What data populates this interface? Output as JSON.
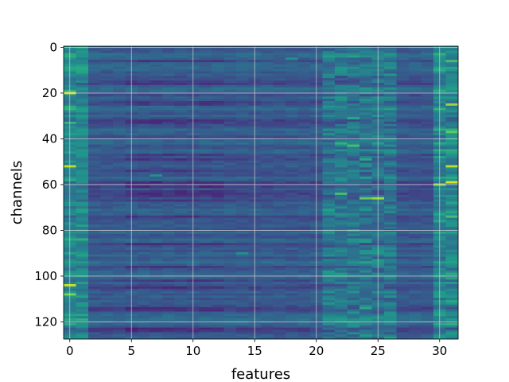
{
  "chart_data": {
    "type": "heatmap",
    "title": "",
    "xlabel": "features",
    "ylabel": "channels",
    "n_cols": 32,
    "n_rows": 128,
    "xlim": [
      -0.5,
      31.5
    ],
    "ylim": [
      127.5,
      -0.5
    ],
    "x_ticks": [
      0,
      5,
      10,
      15,
      20,
      25,
      30
    ],
    "y_ticks": [
      0,
      20,
      40,
      60,
      80,
      100,
      120
    ],
    "grid": true,
    "colormap": "viridis",
    "colormap_stops": [
      "#440154",
      "#482878",
      "#3e4989",
      "#31688e",
      "#26828e",
      "#1f9e89",
      "#35b779",
      "#6ece58",
      "#b5de2b",
      "#fde725"
    ],
    "grid_color": "#d9d9d9",
    "hot_spots": [
      {
        "x": 0,
        "y": 20,
        "value": 0.95
      },
      {
        "x": 0,
        "y": 52,
        "value": 0.9
      },
      {
        "x": 0,
        "y": 104,
        "value": 0.92
      },
      {
        "x": 0,
        "y": 108,
        "value": 0.8
      },
      {
        "x": 0,
        "y": 33,
        "value": 0.65
      },
      {
        "x": 0,
        "y": 58,
        "value": 0.6
      },
      {
        "x": 31,
        "y": 25,
        "value": 0.85
      },
      {
        "x": 31,
        "y": 52,
        "value": 0.9
      },
      {
        "x": 31,
        "y": 59,
        "value": 0.95
      },
      {
        "x": 30,
        "y": 60,
        "value": 0.85
      },
      {
        "x": 31,
        "y": 37,
        "value": 0.75
      },
      {
        "x": 31,
        "y": 74,
        "value": 0.7
      },
      {
        "x": 31,
        "y": 6,
        "value": 0.7
      },
      {
        "x": 25,
        "y": 66,
        "value": 0.85
      },
      {
        "x": 24,
        "y": 66,
        "value": 0.75
      },
      {
        "x": 22,
        "y": 64,
        "value": 0.7
      },
      {
        "x": 23,
        "y": 43,
        "value": 0.7
      },
      {
        "x": 22,
        "y": 42,
        "value": 0.65
      },
      {
        "x": 24,
        "y": 49,
        "value": 0.6
      },
      {
        "x": 23,
        "y": 31,
        "value": 0.6
      },
      {
        "x": 23,
        "y": 80,
        "value": 0.55
      },
      {
        "x": 24,
        "y": 114,
        "value": 0.6
      },
      {
        "x": 22,
        "y": 119,
        "value": 0.55
      },
      {
        "x": 14,
        "y": 90,
        "value": 0.5
      },
      {
        "x": 7,
        "y": 56,
        "value": 0.5
      },
      {
        "x": 18,
        "y": 5,
        "value": 0.5
      }
    ]
  }
}
